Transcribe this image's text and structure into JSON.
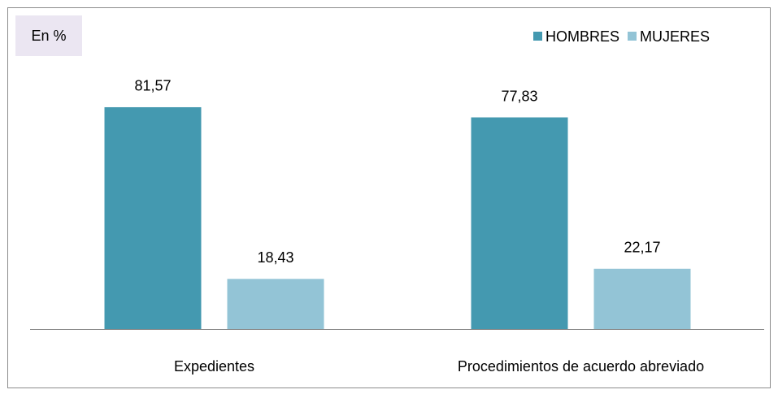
{
  "chart_data": {
    "type": "bar",
    "unit_label": "En %",
    "categories": [
      "Expedientes",
      "Procedimientos de acuerdo abreviado"
    ],
    "series": [
      {
        "name": "HOMBRES",
        "color": "#4499b0",
        "values": [
          81.57,
          77.83
        ],
        "value_labels": [
          "81,57",
          "77,83"
        ]
      },
      {
        "name": "MUJERES",
        "color": "#93c4d6",
        "values": [
          18.43,
          22.17
        ],
        "value_labels": [
          "18,43",
          "22,17"
        ]
      }
    ],
    "legend": "top-right"
  }
}
